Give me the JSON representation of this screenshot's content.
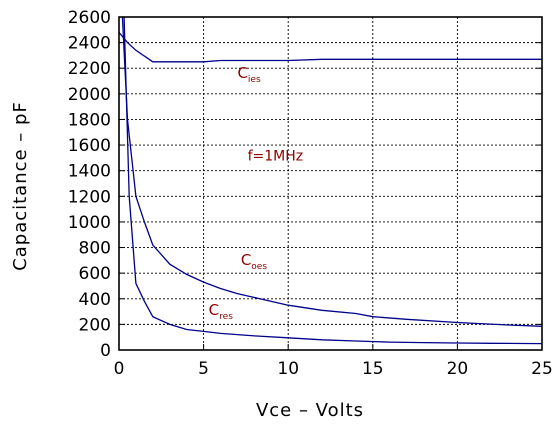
{
  "chart_data": {
    "type": "line",
    "xlabel": "Vce – Volts",
    "ylabel": "Capacitance – pF",
    "xlim": [
      0,
      25
    ],
    "ylim": [
      0,
      2600
    ],
    "xticks": [
      "0",
      "5",
      "10",
      "15",
      "20",
      "25"
    ],
    "yticks": [
      "0",
      "200",
      "400",
      "600",
      "800",
      "1000",
      "1200",
      "1400",
      "1600",
      "1800",
      "2000",
      "2200",
      "2400",
      "2600"
    ],
    "grid": true,
    "annotations": [
      {
        "text": "f=1MHz",
        "x": 7.6,
        "y": 1480
      },
      {
        "text": "C",
        "sub": "ies",
        "x": 7.0,
        "y": 2125
      },
      {
        "text": "C",
        "sub": "oes",
        "x": 7.2,
        "y": 665
      },
      {
        "text": "C",
        "sub": "res",
        "x": 5.3,
        "y": 275
      }
    ],
    "series": [
      {
        "name": "Cies",
        "x": [
          0,
          0.5,
          1,
          2,
          3,
          4,
          5,
          6,
          8,
          10,
          12,
          15,
          20,
          25
        ],
        "y": [
          2480,
          2400,
          2340,
          2250,
          2250,
          2250,
          2250,
          2260,
          2260,
          2260,
          2270,
          2270,
          2270,
          2270
        ]
      },
      {
        "name": "Coes",
        "x": [
          0.2,
          0.5,
          1,
          1.5,
          2,
          3,
          4,
          5,
          6,
          7,
          8,
          10,
          12,
          14,
          15,
          17,
          20,
          23,
          25
        ],
        "y": [
          2600,
          1800,
          1200,
          1000,
          820,
          670,
          590,
          530,
          480,
          440,
          410,
          350,
          310,
          285,
          260,
          240,
          215,
          195,
          185
        ]
      },
      {
        "name": "Cres",
        "x": [
          0.3,
          0.6,
          1,
          1.5,
          2,
          3,
          4,
          5,
          6,
          8,
          10,
          12,
          14,
          16,
          18,
          20,
          22,
          25
        ],
        "y": [
          2600,
          1200,
          520,
          380,
          260,
          200,
          160,
          145,
          130,
          110,
          95,
          80,
          70,
          62,
          58,
          55,
          52,
          50
        ]
      }
    ]
  }
}
